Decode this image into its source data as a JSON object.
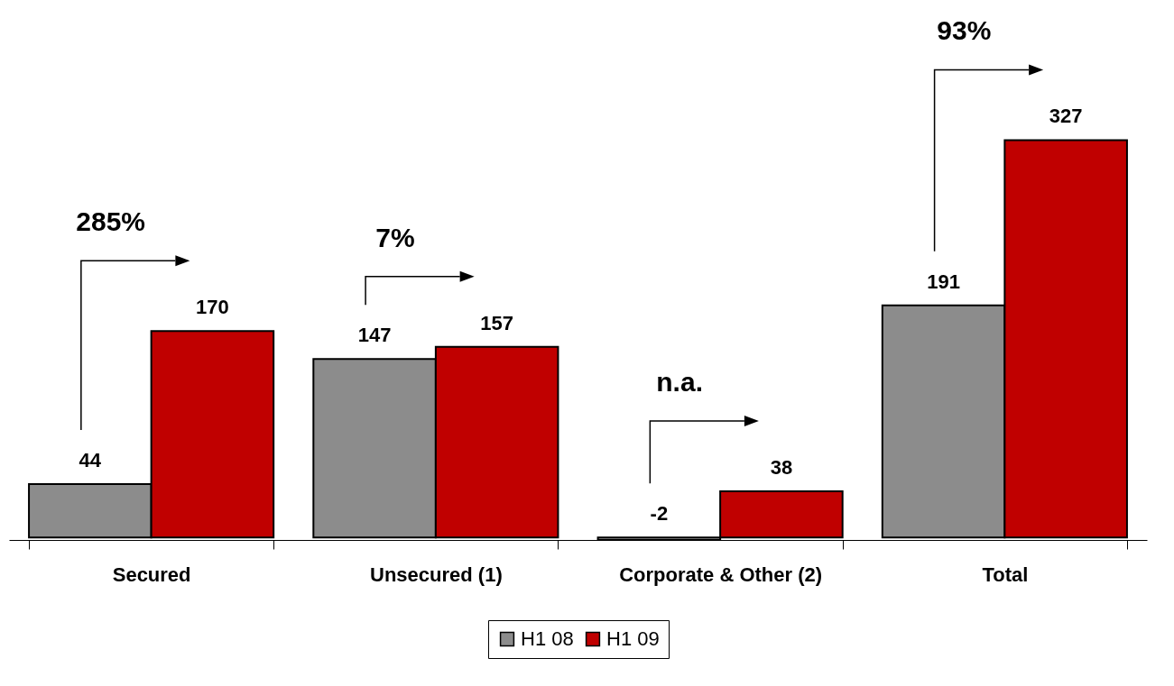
{
  "chart_data": {
    "type": "bar",
    "categories": [
      "Secured",
      "Unsecured (1)",
      "Corporate & Other (2)",
      "Total"
    ],
    "series": [
      {
        "name": "H1 08",
        "color": "#8c8c8c",
        "values": [
          44,
          147,
          -2,
          191
        ]
      },
      {
        "name": "H1 09",
        "color": "#c00000",
        "values": [
          170,
          157,
          38,
          327
        ]
      }
    ],
    "data_labels": true,
    "legend": "bottom",
    "grid": false,
    "annotations": [
      "285%",
      "7%",
      "n.a.",
      "93%"
    ]
  }
}
